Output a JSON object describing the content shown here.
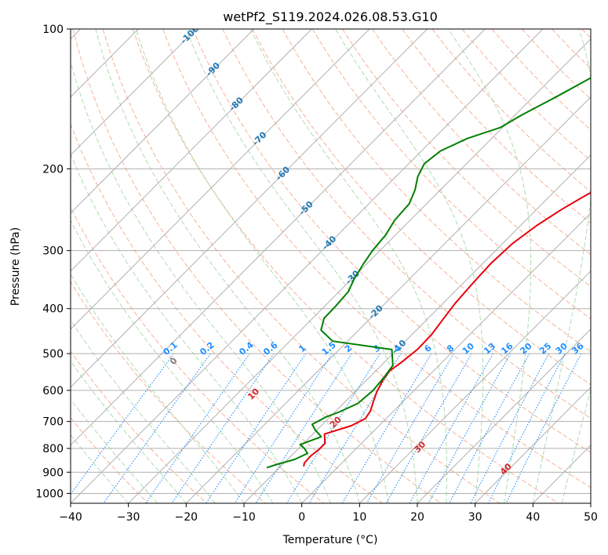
{
  "chart_data": {
    "type": "line",
    "subtype": "skew-t log-p diagram",
    "title": "wetPf2_S119.2024.026.08.53.G10",
    "xlabel": "Temperature (°C)",
    "ylabel": "Pressure (hPa)",
    "xlim": [
      -40,
      50
    ],
    "ylim": [
      1050,
      100
    ],
    "y_scale": "log",
    "x_ticks": [
      -40,
      -30,
      -20,
      -10,
      0,
      10,
      20,
      30,
      40,
      50
    ],
    "x_tick_labels": [
      "−40",
      "−30",
      "−20",
      "−10",
      "0",
      "10",
      "20",
      "30",
      "40",
      "50"
    ],
    "y_ticks": [
      100,
      200,
      300,
      400,
      500,
      600,
      700,
      800,
      900,
      1000
    ],
    "y_tick_labels": [
      "100",
      "200",
      "300",
      "400",
      "500",
      "600",
      "700",
      "800",
      "900",
      "1000"
    ],
    "grid": true,
    "series": [
      {
        "role": "temperature",
        "color": "#e8000b",
        "points": [
          [
            -6.0,
            875
          ],
          [
            -6.5,
            860
          ],
          [
            -6.6,
            830
          ],
          [
            -6.3,
            805
          ],
          [
            -6.3,
            780
          ],
          [
            -8.0,
            745
          ],
          [
            -4.8,
            715
          ],
          [
            -3.6,
            690
          ],
          [
            -4.0,
            665
          ],
          [
            -5.1,
            635
          ],
          [
            -6.2,
            605
          ],
          [
            -7.2,
            570
          ],
          [
            -7.6,
            545
          ],
          [
            -7.0,
            520
          ],
          [
            -6.5,
            490
          ],
          [
            -6.6,
            455
          ],
          [
            -7.2,
            425
          ],
          [
            -7.9,
            390
          ],
          [
            -8.3,
            355
          ],
          [
            -8.6,
            320
          ],
          [
            -8.3,
            290
          ],
          [
            -7.2,
            265
          ],
          [
            -5.7,
            245
          ],
          [
            -3.9,
            228
          ],
          [
            -1.5,
            212
          ],
          [
            1.2,
            200
          ],
          [
            4.4,
            184
          ],
          [
            6.6,
            168
          ],
          [
            8.6,
            152
          ],
          [
            10.4,
            138
          ],
          [
            12.2,
            124
          ],
          [
            13.9,
            113
          ],
          [
            15.7,
            105
          ],
          [
            17.3,
            100
          ]
        ]
      },
      {
        "role": "dewpoint",
        "color": "#008000",
        "points": [
          [
            -12.2,
            880
          ],
          [
            -10.9,
            865
          ],
          [
            -8.8,
            845
          ],
          [
            -7.6,
            820
          ],
          [
            -9.0,
            800
          ],
          [
            -10.4,
            785
          ],
          [
            -8.1,
            755
          ],
          [
            -10.3,
            730
          ],
          [
            -11.8,
            710
          ],
          [
            -10.7,
            685
          ],
          [
            -9.2,
            667
          ],
          [
            -7.5,
            640
          ],
          [
            -7.1,
            600
          ],
          [
            -7.5,
            560
          ],
          [
            -8.0,
            530
          ],
          [
            -10.9,
            490
          ],
          [
            -22.6,
            470
          ],
          [
            -26.5,
            445
          ],
          [
            -28.0,
            420
          ],
          [
            -28.1,
            395
          ],
          [
            -28.4,
            368
          ],
          [
            -29.6,
            345
          ],
          [
            -30.6,
            320
          ],
          [
            -31.3,
            300
          ],
          [
            -31.7,
            278
          ],
          [
            -32.7,
            258
          ],
          [
            -33.0,
            238
          ],
          [
            -34.4,
            222
          ],
          [
            -36.2,
            208
          ],
          [
            -37.3,
            195
          ],
          [
            -36.7,
            183
          ],
          [
            -34.2,
            172
          ],
          [
            -30.4,
            163
          ],
          [
            -28.8,
            153
          ],
          [
            -26.0,
            140
          ],
          [
            -23.2,
            127
          ],
          [
            -20.3,
            117
          ],
          [
            -18.0,
            110
          ],
          [
            -16.2,
            105
          ],
          [
            -14.0,
            100
          ]
        ]
      }
    ],
    "isotherm_labels": [
      "-100",
      "-90",
      "-80",
      "-70",
      "-60",
      "-50",
      "-40",
      "-30",
      "-20",
      "-10"
    ],
    "isotherm_label_color": "#1f77b4",
    "dry_adiabat_labels": [
      "0",
      "10",
      "20",
      "30",
      "40"
    ],
    "dry_adiabat_label_colors": [
      "#7f7f7f",
      "#d62728",
      "#d62728",
      "#d62728",
      "#d62728"
    ],
    "mixing_ratio_labels": [
      "0.1",
      "0.2",
      "0.4",
      "0.6",
      "1",
      "1.5",
      "2",
      "3",
      "4",
      "6",
      "8",
      "10",
      "13",
      "16",
      "20",
      "25",
      "30",
      "36"
    ],
    "mixing_ratio_label_color": "#1e90ff",
    "background_line_colors": {
      "isotherm": "#b0b0b0",
      "dry_adiabat": "#f4a582",
      "moist_adiabat": "#a6d8a6",
      "mixing_ratio": "#1e90ff",
      "pressure_grid": "#b0b0b0"
    }
  }
}
